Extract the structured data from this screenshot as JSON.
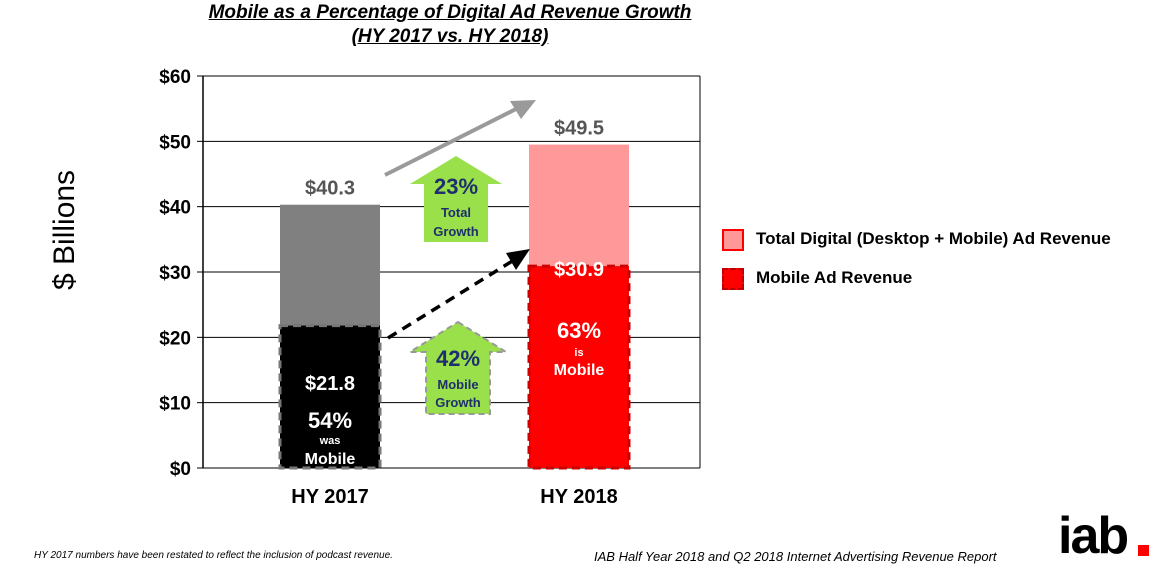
{
  "chart_data": {
    "type": "bar",
    "title": "Mobile as a Percentage of Digital Ad Revenue Growth",
    "subtitle": "(HY 2017 vs. HY 2018)",
    "ylabel": "$ Billions",
    "xlabel": "",
    "ylim": [
      0,
      60
    ],
    "y_ticks": [
      "$0",
      "$10",
      "$20",
      "$30",
      "$40",
      "$50",
      "$60"
    ],
    "y_tick_values": [
      0,
      10,
      20,
      30,
      40,
      50,
      60
    ],
    "categories": [
      "HY 2017",
      "HY 2018"
    ],
    "series": [
      {
        "name": "Total Digital (Desktop + Mobile) Ad Revenue",
        "values": [
          40.3,
          49.5
        ]
      },
      {
        "name": "Mobile Ad Revenue",
        "values": [
          21.8,
          30.9
        ]
      }
    ],
    "total_labels": [
      "$40.3",
      "$49.5"
    ],
    "mobile_labels": [
      "$21.8",
      "$30.9"
    ],
    "share_pct": [
      "54%",
      "63%"
    ],
    "share_word": [
      "was",
      "is"
    ],
    "share_tail": [
      "Mobile",
      "Mobile"
    ],
    "growth_total": {
      "pct": "23%",
      "line1": "Total",
      "line2": "Growth"
    },
    "growth_mobile": {
      "pct": "42%",
      "line1": "Mobile",
      "line2": "Growth"
    },
    "grid": true,
    "legend_position": "right"
  },
  "colors": {
    "total_2017": "#808080",
    "mobile_2017": "#000000",
    "total_2018": "#ff9999",
    "mobile_2018": "#ff0000",
    "growth_arrow": "#99e04a",
    "growth_text": "#1f2f6e",
    "trend_arrow": "#9a9a9a"
  },
  "legend": {
    "total_label": "Total Digital (Desktop + Mobile) Ad Revenue",
    "mobile_label": "Mobile Ad Revenue"
  },
  "footer": {
    "note": "HY 2017 numbers have been restated to reflect the inclusion of podcast revenue.",
    "source": "IAB Half Year 2018 and Q2 2018 Internet Advertising Revenue Report",
    "logo": "iab"
  }
}
